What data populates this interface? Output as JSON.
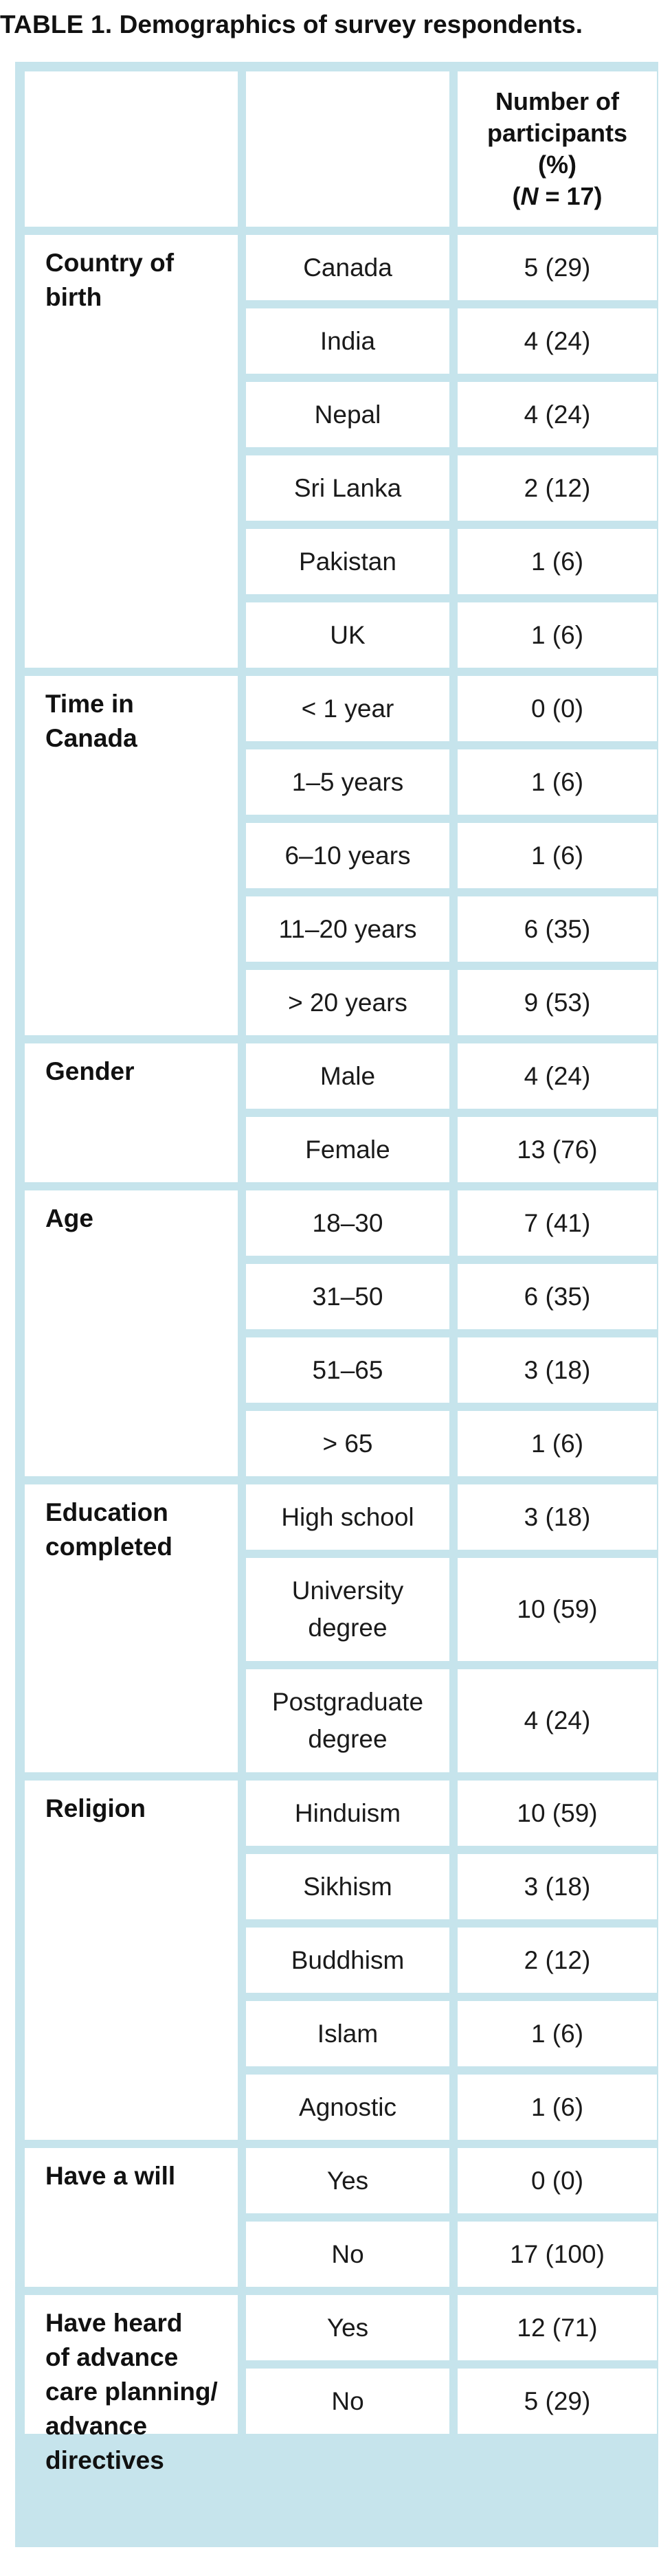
{
  "caption": {
    "label": "TABLE 1.",
    "text": "Demographics of survey respondents."
  },
  "header": {
    "col3_line1": "Number of",
    "col3_line2": "participants",
    "col3_line3": "(%)",
    "n_prefix": "(",
    "n_symbol": "N",
    "n_suffix": " = 17)"
  },
  "colors": {
    "frame": "#c6e4ec",
    "cell": "#ffffff"
  },
  "groups": [
    {
      "category": "Country of\nbirth",
      "rows": [
        {
          "label": "Canada",
          "value": "5 (29)"
        },
        {
          "label": "India",
          "value": "4 (24)"
        },
        {
          "label": "Nepal",
          "value": "4 (24)"
        },
        {
          "label": "Sri Lanka",
          "value": "2 (12)"
        },
        {
          "label": "Pakistan",
          "value": "1 (6)"
        },
        {
          "label": "UK",
          "value": "1 (6)"
        }
      ]
    },
    {
      "category": "Time in\nCanada",
      "rows": [
        {
          "label": "< 1 year",
          "value": "0 (0)"
        },
        {
          "label": "1–5 years",
          "value": "1 (6)"
        },
        {
          "label": "6–10 years",
          "value": "1 (6)"
        },
        {
          "label": "11–20 years",
          "value": "6 (35)"
        },
        {
          "label": "> 20 years",
          "value": "9 (53)"
        }
      ]
    },
    {
      "category": "Gender",
      "rows": [
        {
          "label": "Male",
          "value": "4 (24)"
        },
        {
          "label": "Female",
          "value": "13 (76)"
        }
      ]
    },
    {
      "category": "Age",
      "rows": [
        {
          "label": "18–30",
          "value": "7 (41)"
        },
        {
          "label": "31–50",
          "value": "6 (35)"
        },
        {
          "label": "51–65",
          "value": "3 (18)"
        },
        {
          "label": "> 65",
          "value": "1 (6)"
        }
      ]
    },
    {
      "category": "Education\ncompleted",
      "rows": [
        {
          "label": "High school",
          "value": "3 (18)"
        },
        {
          "label": "University\ndegree",
          "value": "10 (59)"
        },
        {
          "label": "Postgraduate\ndegree",
          "value": "4 (24)"
        }
      ]
    },
    {
      "category": "Religion",
      "rows": [
        {
          "label": "Hinduism",
          "value": "10 (59)"
        },
        {
          "label": "Sikhism",
          "value": "3 (18)"
        },
        {
          "label": "Buddhism",
          "value": "2 (12)"
        },
        {
          "label": "Islam",
          "value": "1 (6)"
        },
        {
          "label": "Agnostic",
          "value": "1 (6)"
        }
      ]
    },
    {
      "category": "Have a will",
      "rows": [
        {
          "label": "Yes",
          "value": "0 (0)"
        },
        {
          "label": "No",
          "value": "17 (100)"
        }
      ]
    },
    {
      "category": "Have heard\nof advance\ncare planning/\nadvance\ndirectives",
      "rows": [
        {
          "label": "Yes",
          "value": "12 (71)"
        },
        {
          "label": "No",
          "value": "5 (29)"
        }
      ]
    }
  ]
}
